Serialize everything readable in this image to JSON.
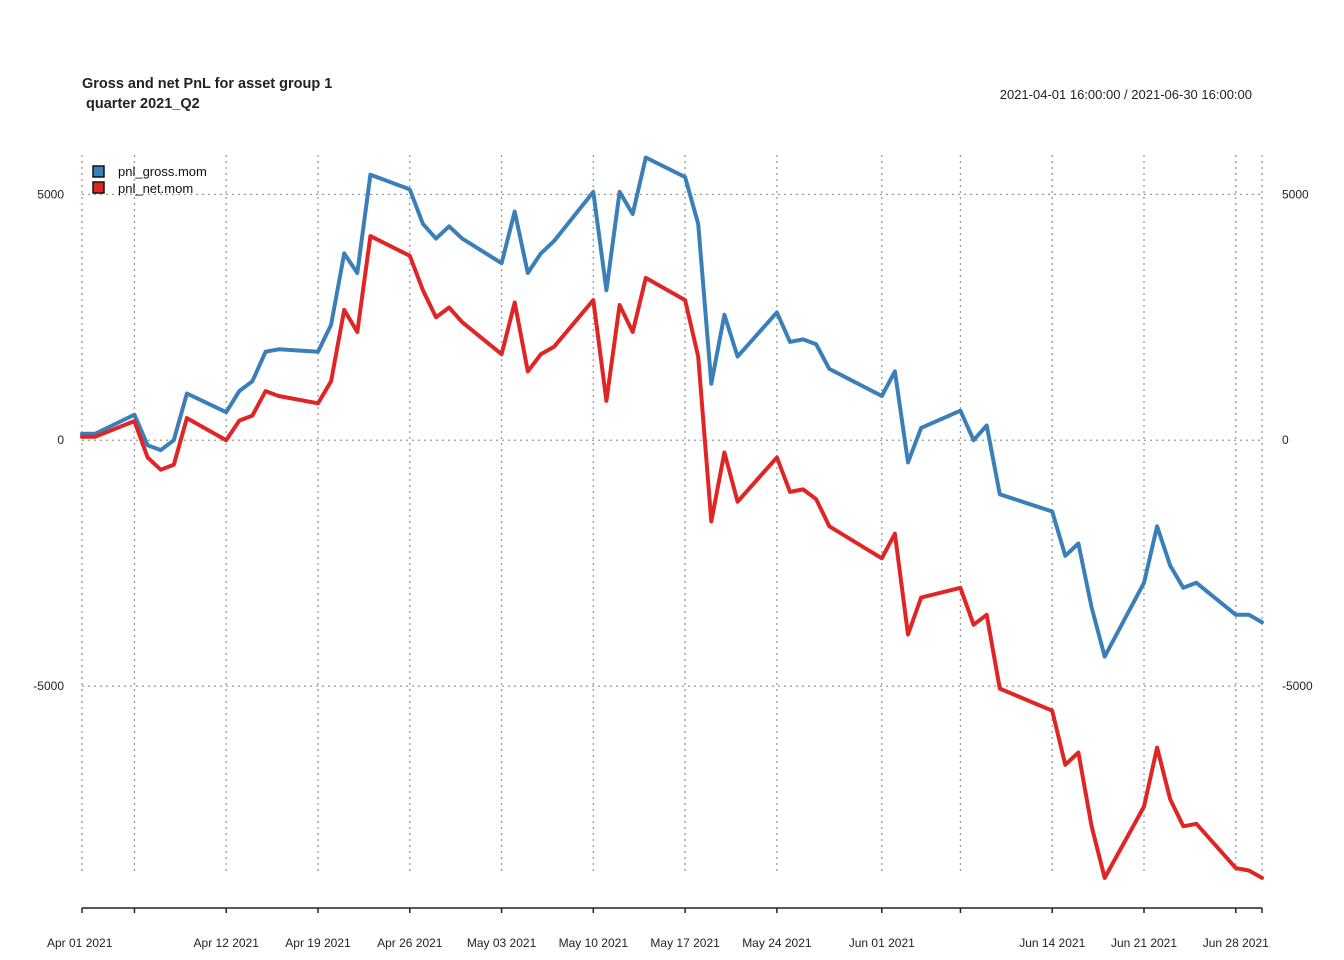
{
  "chart_data": {
    "type": "line",
    "title_line1": "Gross and net PnL for asset group 1",
    "title_line2": " quarter 2021_Q2",
    "date_range": "2021-04-01 16:00:00 / 2021-06-30 16:00:00",
    "ylim": [
      -8800,
      5800
    ],
    "y_ticks": [
      {
        "value": 5000,
        "label": "5000"
      },
      {
        "value": 0,
        "label": "0"
      },
      {
        "value": -5000,
        "label": "-5000"
      }
    ],
    "x_start": "2021-04-01",
    "x_end": "2021-06-30",
    "x_tick_labels": [
      {
        "date": "2021-04-01",
        "label": "Apr 01 2021"
      },
      {
        "date": "2021-04-12",
        "label": "Apr 12 2021"
      },
      {
        "date": "2021-04-19",
        "label": "Apr 19 2021"
      },
      {
        "date": "2021-04-26",
        "label": "Apr 26 2021"
      },
      {
        "date": "2021-05-03",
        "label": "May 03 2021"
      },
      {
        "date": "2021-05-10",
        "label": "May 10 2021"
      },
      {
        "date": "2021-05-17",
        "label": "May 17 2021"
      },
      {
        "date": "2021-05-24",
        "label": "May 24 2021"
      },
      {
        "date": "2021-06-01",
        "label": "Jun 01 2021"
      },
      {
        "date": "2021-06-14",
        "label": "Jun 14 2021"
      },
      {
        "date": "2021-06-21",
        "label": "Jun 21 2021"
      },
      {
        "date": "2021-06-28",
        "label": "Jun 28 2021"
      }
    ],
    "x_grid_dates": [
      "2021-04-01",
      "2021-04-05",
      "2021-04-12",
      "2021-04-19",
      "2021-04-26",
      "2021-05-03",
      "2021-05-10",
      "2021-05-17",
      "2021-05-24",
      "2021-06-01",
      "2021-06-07",
      "2021-06-14",
      "2021-06-21",
      "2021-06-28",
      "2021-06-30"
    ],
    "x_minor_ticks": [
      "2021-04-01",
      "2021-04-05",
      "2021-04-12",
      "2021-04-19",
      "2021-04-26",
      "2021-05-03",
      "2021-05-10",
      "2021-05-17",
      "2021-05-24",
      "2021-06-01",
      "2021-06-07",
      "2021-06-14",
      "2021-06-21",
      "2021-06-28",
      "2021-06-30"
    ],
    "grid": true,
    "legend_position": "top-left",
    "dates": [
      "2021-04-01",
      "2021-04-02",
      "2021-04-05",
      "2021-04-06",
      "2021-04-07",
      "2021-04-08",
      "2021-04-09",
      "2021-04-12",
      "2021-04-13",
      "2021-04-14",
      "2021-04-15",
      "2021-04-16",
      "2021-04-19",
      "2021-04-20",
      "2021-04-21",
      "2021-04-22",
      "2021-04-23",
      "2021-04-26",
      "2021-04-27",
      "2021-04-28",
      "2021-04-29",
      "2021-04-30",
      "2021-05-03",
      "2021-05-04",
      "2021-05-05",
      "2021-05-06",
      "2021-05-07",
      "2021-05-10",
      "2021-05-11",
      "2021-05-12",
      "2021-05-13",
      "2021-05-14",
      "2021-05-17",
      "2021-05-18",
      "2021-05-19",
      "2021-05-20",
      "2021-05-21",
      "2021-05-24",
      "2021-05-25",
      "2021-05-26",
      "2021-05-27",
      "2021-05-28",
      "2021-06-01",
      "2021-06-02",
      "2021-06-03",
      "2021-06-04",
      "2021-06-07",
      "2021-06-08",
      "2021-06-09",
      "2021-06-10",
      "2021-06-14",
      "2021-06-15",
      "2021-06-16",
      "2021-06-17",
      "2021-06-18",
      "2021-06-21",
      "2021-06-22",
      "2021-06-23",
      "2021-06-24",
      "2021-06-25",
      "2021-06-28",
      "2021-06-29",
      "2021-06-30"
    ],
    "series": [
      {
        "name": "pnl_gross.mom",
        "color": "#3b7fb8",
        "values": [
          130,
          130,
          520,
          -100,
          -200,
          0,
          950,
          570,
          1000,
          1200,
          1800,
          1850,
          1800,
          2350,
          3800,
          3400,
          5400,
          5100,
          4400,
          4100,
          4350,
          4100,
          3600,
          4650,
          3400,
          3800,
          4050,
          5050,
          3050,
          5050,
          4600,
          5750,
          5350,
          4400,
          1150,
          2550,
          1700,
          2600,
          2000,
          2050,
          1950,
          1450,
          900,
          1400,
          -450,
          250,
          600,
          0,
          300,
          -1100,
          -1450,
          -2350,
          -2100,
          -3400,
          -4400,
          -2900,
          -1750,
          -2550,
          -3000,
          -2900,
          -3550,
          -3550,
          -3700
        ]
      },
      {
        "name": "pnl_net.mom",
        "color": "#e02525",
        "values": [
          70,
          70,
          390,
          -350,
          -600,
          -500,
          450,
          0,
          400,
          500,
          1000,
          900,
          750,
          1200,
          2650,
          2200,
          4150,
          3750,
          3050,
          2500,
          2700,
          2400,
          1750,
          2800,
          1400,
          1750,
          1900,
          2850,
          800,
          2750,
          2200,
          3300,
          2850,
          1700,
          -1650,
          -250,
          -1250,
          -350,
          -1050,
          -1000,
          -1200,
          -1750,
          -2400,
          -1900,
          -3950,
          -3200,
          -3000,
          -3750,
          -3550,
          -5050,
          -5500,
          -6600,
          -6350,
          -7850,
          -8900,
          -7450,
          -6250,
          -7300,
          -7850,
          -7800,
          -8700,
          -8750,
          -8900
        ]
      }
    ]
  }
}
